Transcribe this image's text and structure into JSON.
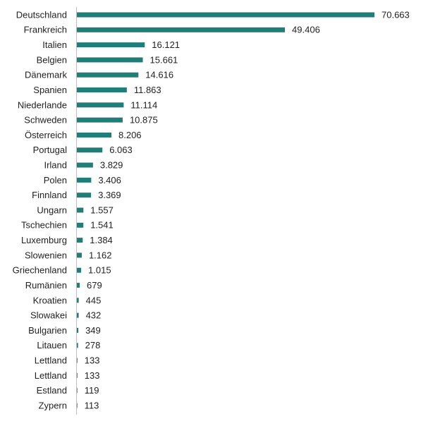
{
  "chart_data": {
    "type": "bar",
    "orientation": "horizontal",
    "color": "#1f7f78",
    "categories": [
      "Deutschland",
      "Frankreich",
      "Italien",
      "Belgien",
      "Dänemark",
      "Spanien",
      "Niederlande",
      "Schweden",
      "Österreich",
      "Portugal",
      "Irland",
      "Polen",
      "Finnland",
      "Ungarn",
      "Tschechien",
      "Luxemburg",
      "Slowenien",
      "Griechenland",
      "Rumänien",
      "Kroatien",
      "Slowakei",
      "Bulgarien",
      "Litauen",
      "Lettland",
      "Lettland",
      "Estland",
      "Zypern"
    ],
    "values": [
      70663,
      49406,
      16121,
      15661,
      14616,
      11863,
      11114,
      10875,
      8206,
      6063,
      3829,
      3406,
      3369,
      1557,
      1541,
      1384,
      1162,
      1015,
      679,
      445,
      432,
      349,
      278,
      133,
      133,
      119,
      113
    ],
    "value_labels": [
      "70.663",
      "49.406",
      "16.121",
      "15.661",
      "14.616",
      "11.863",
      "11.114",
      "10.875",
      "8.206",
      "6.063",
      "3.829",
      "3.406",
      "3.369",
      "1.557",
      "1.541",
      "1.384",
      "1.162",
      "1.015",
      "679",
      "445",
      "432",
      "349",
      "278",
      "133",
      "133",
      "119",
      "113"
    ]
  }
}
